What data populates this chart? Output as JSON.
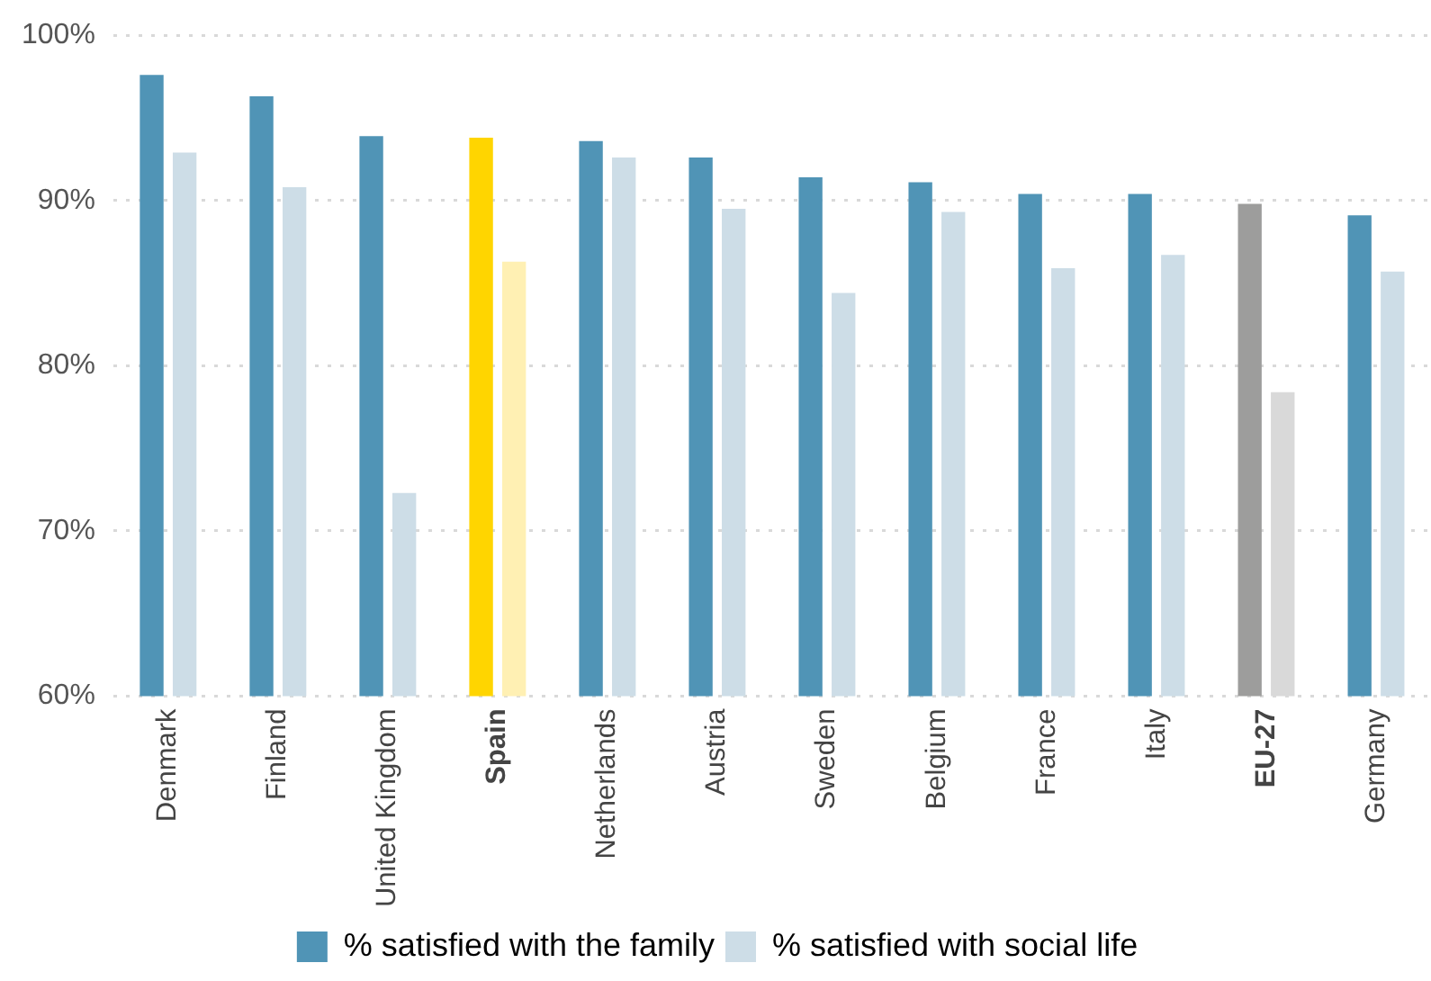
{
  "chart_data": {
    "type": "bar",
    "categories": [
      "Denmark",
      "Finland",
      "United Kingdom",
      "Spain",
      "Netherlands",
      "Austria",
      "Sweden",
      "Belgium",
      "France",
      "Italy",
      "EU-27",
      "Germany"
    ],
    "series": [
      {
        "name": "% satisfied with the family",
        "color": "#5094b6",
        "colors": [
          "#5094b6",
          "#5094b6",
          "#5094b6",
          "#ffd500",
          "#5094b6",
          "#5094b6",
          "#5094b6",
          "#5094b6",
          "#5094b6",
          "#5094b6",
          "#9d9d9c",
          "#5094b6"
        ],
        "values": [
          97.6,
          96.3,
          93.9,
          93.8,
          93.6,
          92.6,
          91.4,
          91.1,
          90.4,
          90.4,
          89.8,
          89.1
        ]
      },
      {
        "name": "% satisfied with social life",
        "color": "#cddde7",
        "colors": [
          "#cddde7",
          "#cddde7",
          "#cddde7",
          "#fff0b3",
          "#cddde7",
          "#cddde7",
          "#cddde7",
          "#cddde7",
          "#cddde7",
          "#cddde7",
          "#d9d9d9",
          "#cddde7"
        ],
        "values": [
          92.9,
          90.8,
          72.3,
          86.3,
          92.6,
          89.5,
          84.4,
          89.3,
          85.9,
          86.7,
          78.4,
          85.7
        ]
      }
    ],
    "ylim": [
      60,
      100
    ],
    "yticks": [
      {
        "value": 60,
        "label": "60%"
      },
      {
        "value": 70,
        "label": "70%"
      },
      {
        "value": 80,
        "label": "80%"
      },
      {
        "value": 90,
        "label": "90%"
      },
      {
        "value": 100,
        "label": "100%"
      }
    ],
    "grid": "y",
    "legend": "bottom"
  }
}
